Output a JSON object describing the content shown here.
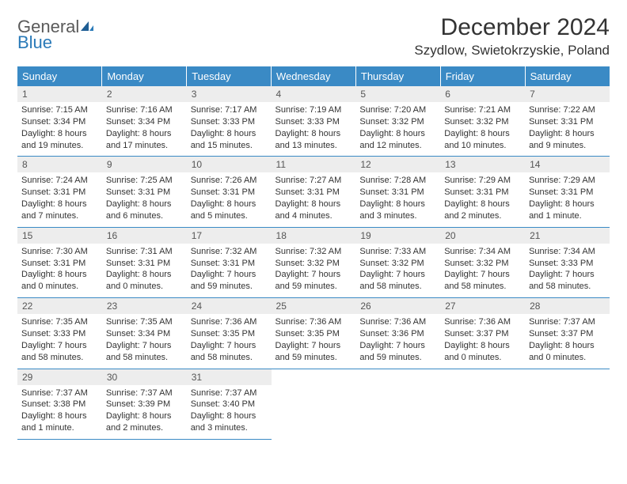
{
  "logo": {
    "text1": "General",
    "text2": "Blue"
  },
  "title": "December 2024",
  "location": "Szydlow, Swietokrzyskie, Poland",
  "colors": {
    "header_bg": "#3a8ac5",
    "header_text": "#ffffff",
    "daynum_bg": "#ededed",
    "border": "#3a8ac5",
    "logo_gray": "#5a5a5a",
    "logo_blue": "#2a7ab8"
  },
  "weekdays": [
    "Sunday",
    "Monday",
    "Tuesday",
    "Wednesday",
    "Thursday",
    "Friday",
    "Saturday"
  ],
  "days": [
    {
      "n": "1",
      "sr": "7:15 AM",
      "ss": "3:34 PM",
      "dl": "8 hours and 19 minutes."
    },
    {
      "n": "2",
      "sr": "7:16 AM",
      "ss": "3:34 PM",
      "dl": "8 hours and 17 minutes."
    },
    {
      "n": "3",
      "sr": "7:17 AM",
      "ss": "3:33 PM",
      "dl": "8 hours and 15 minutes."
    },
    {
      "n": "4",
      "sr": "7:19 AM",
      "ss": "3:33 PM",
      "dl": "8 hours and 13 minutes."
    },
    {
      "n": "5",
      "sr": "7:20 AM",
      "ss": "3:32 PM",
      "dl": "8 hours and 12 minutes."
    },
    {
      "n": "6",
      "sr": "7:21 AM",
      "ss": "3:32 PM",
      "dl": "8 hours and 10 minutes."
    },
    {
      "n": "7",
      "sr": "7:22 AM",
      "ss": "3:31 PM",
      "dl": "8 hours and 9 minutes."
    },
    {
      "n": "8",
      "sr": "7:24 AM",
      "ss": "3:31 PM",
      "dl": "8 hours and 7 minutes."
    },
    {
      "n": "9",
      "sr": "7:25 AM",
      "ss": "3:31 PM",
      "dl": "8 hours and 6 minutes."
    },
    {
      "n": "10",
      "sr": "7:26 AM",
      "ss": "3:31 PM",
      "dl": "8 hours and 5 minutes."
    },
    {
      "n": "11",
      "sr": "7:27 AM",
      "ss": "3:31 PM",
      "dl": "8 hours and 4 minutes."
    },
    {
      "n": "12",
      "sr": "7:28 AM",
      "ss": "3:31 PM",
      "dl": "8 hours and 3 minutes."
    },
    {
      "n": "13",
      "sr": "7:29 AM",
      "ss": "3:31 PM",
      "dl": "8 hours and 2 minutes."
    },
    {
      "n": "14",
      "sr": "7:29 AM",
      "ss": "3:31 PM",
      "dl": "8 hours and 1 minute."
    },
    {
      "n": "15",
      "sr": "7:30 AM",
      "ss": "3:31 PM",
      "dl": "8 hours and 0 minutes."
    },
    {
      "n": "16",
      "sr": "7:31 AM",
      "ss": "3:31 PM",
      "dl": "8 hours and 0 minutes."
    },
    {
      "n": "17",
      "sr": "7:32 AM",
      "ss": "3:31 PM",
      "dl": "7 hours and 59 minutes."
    },
    {
      "n": "18",
      "sr": "7:32 AM",
      "ss": "3:32 PM",
      "dl": "7 hours and 59 minutes."
    },
    {
      "n": "19",
      "sr": "7:33 AM",
      "ss": "3:32 PM",
      "dl": "7 hours and 58 minutes."
    },
    {
      "n": "20",
      "sr": "7:34 AM",
      "ss": "3:32 PM",
      "dl": "7 hours and 58 minutes."
    },
    {
      "n": "21",
      "sr": "7:34 AM",
      "ss": "3:33 PM",
      "dl": "7 hours and 58 minutes."
    },
    {
      "n": "22",
      "sr": "7:35 AM",
      "ss": "3:33 PM",
      "dl": "7 hours and 58 minutes."
    },
    {
      "n": "23",
      "sr": "7:35 AM",
      "ss": "3:34 PM",
      "dl": "7 hours and 58 minutes."
    },
    {
      "n": "24",
      "sr": "7:36 AM",
      "ss": "3:35 PM",
      "dl": "7 hours and 58 minutes."
    },
    {
      "n": "25",
      "sr": "7:36 AM",
      "ss": "3:35 PM",
      "dl": "7 hours and 59 minutes."
    },
    {
      "n": "26",
      "sr": "7:36 AM",
      "ss": "3:36 PM",
      "dl": "7 hours and 59 minutes."
    },
    {
      "n": "27",
      "sr": "7:36 AM",
      "ss": "3:37 PM",
      "dl": "8 hours and 0 minutes."
    },
    {
      "n": "28",
      "sr": "7:37 AM",
      "ss": "3:37 PM",
      "dl": "8 hours and 0 minutes."
    },
    {
      "n": "29",
      "sr": "7:37 AM",
      "ss": "3:38 PM",
      "dl": "8 hours and 1 minute."
    },
    {
      "n": "30",
      "sr": "7:37 AM",
      "ss": "3:39 PM",
      "dl": "8 hours and 2 minutes."
    },
    {
      "n": "31",
      "sr": "7:37 AM",
      "ss": "3:40 PM",
      "dl": "8 hours and 3 minutes."
    }
  ],
  "labels": {
    "sunrise": "Sunrise:",
    "sunset": "Sunset:",
    "daylight": "Daylight:"
  }
}
